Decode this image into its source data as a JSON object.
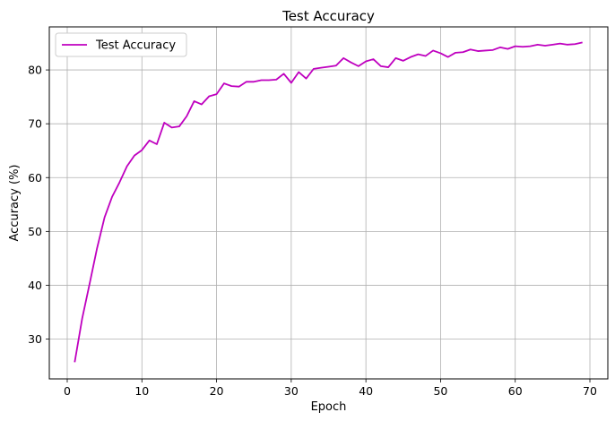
{
  "chart_data": {
    "type": "line",
    "title": "Test Accuracy",
    "xlabel": "Epoch",
    "ylabel": "Accuracy (%)",
    "xlim": [
      -2.4,
      72.4
    ],
    "ylim": [
      22.6,
      88.0
    ],
    "xticks": [
      0,
      10,
      20,
      30,
      40,
      50,
      60,
      70
    ],
    "yticks": [
      30,
      40,
      50,
      60,
      70,
      80
    ],
    "grid": true,
    "legend": {
      "position": "top-left",
      "entries": [
        "Test Accuracy"
      ]
    },
    "series": [
      {
        "name": "Test Accuracy",
        "color": "#bf00bf",
        "x": [
          1,
          2,
          3,
          4,
          5,
          6,
          7,
          8,
          9,
          10,
          11,
          12,
          13,
          14,
          15,
          16,
          17,
          18,
          19,
          20,
          21,
          22,
          23,
          24,
          25,
          26,
          27,
          28,
          29,
          30,
          31,
          32,
          33,
          34,
          35,
          36,
          37,
          38,
          39,
          40,
          41,
          42,
          43,
          44,
          45,
          46,
          47,
          48,
          49,
          50,
          51,
          52,
          53,
          54,
          55,
          56,
          57,
          58,
          59,
          60,
          61,
          62,
          63,
          64,
          65,
          66,
          67,
          68,
          69
        ],
        "y": [
          25.7,
          33.8,
          40.3,
          46.9,
          52.6,
          56.4,
          59.1,
          62.1,
          64.1,
          65.1,
          66.9,
          66.2,
          70.2,
          69.3,
          69.5,
          71.4,
          74.2,
          73.6,
          75.1,
          75.5,
          77.5,
          77.0,
          76.9,
          77.8,
          77.8,
          78.1,
          78.1,
          78.2,
          79.3,
          77.6,
          79.6,
          78.4,
          80.2,
          80.4,
          80.6,
          80.8,
          82.2,
          81.4,
          80.7,
          81.6,
          82.0,
          80.7,
          80.5,
          82.2,
          81.7,
          82.4,
          82.9,
          82.6,
          83.6,
          83.1,
          82.4,
          83.2,
          83.3,
          83.8,
          83.5,
          83.6,
          83.7,
          84.2,
          83.9,
          84.4,
          84.3,
          84.4,
          84.7,
          84.5,
          84.7,
          84.9,
          84.7,
          84.8,
          85.1
        ]
      }
    ]
  }
}
